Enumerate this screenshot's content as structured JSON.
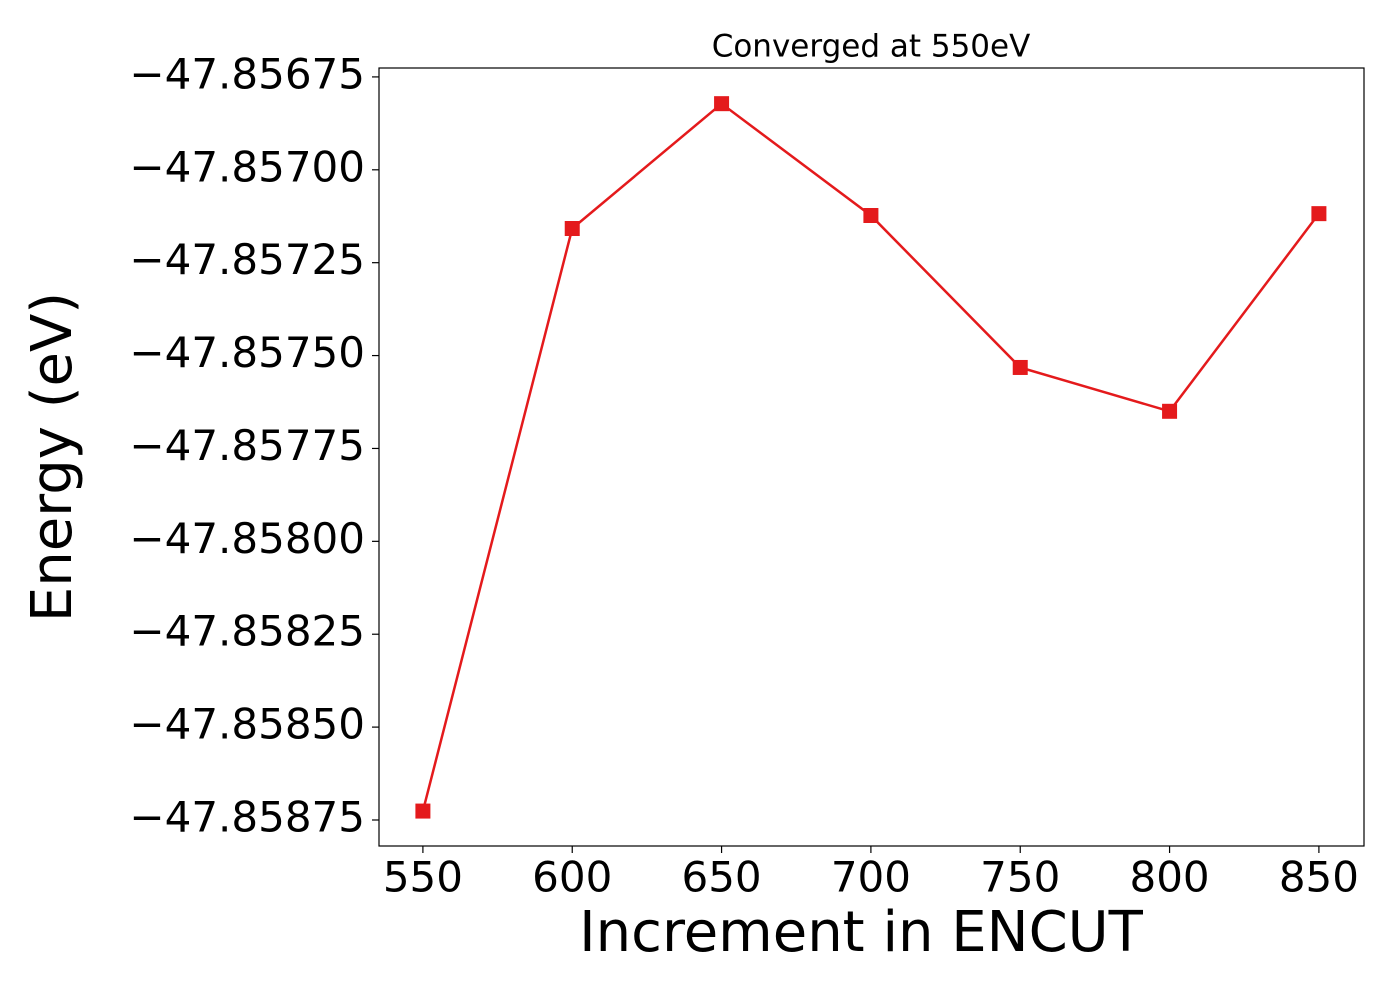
{
  "chart_data": {
    "type": "line",
    "title": "Converged at 550eV",
    "x_label": "Increment in ENCUT",
    "y_label": "Energy (eV)",
    "x": [
      550,
      600,
      650,
      700,
      750,
      800,
      850
    ],
    "series": [
      {
        "name": "Energy",
        "color": "#e41a1c",
        "marker": "square",
        "values": [
          -47.858726,
          -47.857158,
          -47.856822,
          -47.857123,
          -47.857532,
          -47.85765,
          -47.857118
        ]
      }
    ],
    "xlim": [
      535.3,
      865.1
    ],
    "xticks": [
      550,
      600,
      650,
      700,
      750,
      800,
      850
    ],
    "ylim": [
      -47.85882,
      -47.856726
    ],
    "yticks": [
      {
        "value": -47.85875,
        "label": "−47.85875"
      },
      {
        "value": -47.8585,
        "label": "−47.85850"
      },
      {
        "value": -47.85825,
        "label": "−47.85825"
      },
      {
        "value": -47.858,
        "label": "−47.85800"
      },
      {
        "value": -47.85775,
        "label": "−47.85775"
      },
      {
        "value": -47.8575,
        "label": "−47.85750"
      },
      {
        "value": -47.85725,
        "label": "−47.85725"
      },
      {
        "value": -47.857,
        "label": "−47.85700"
      },
      {
        "value": -47.85675,
        "label": "−47.85675"
      }
    ],
    "grid": false
  }
}
